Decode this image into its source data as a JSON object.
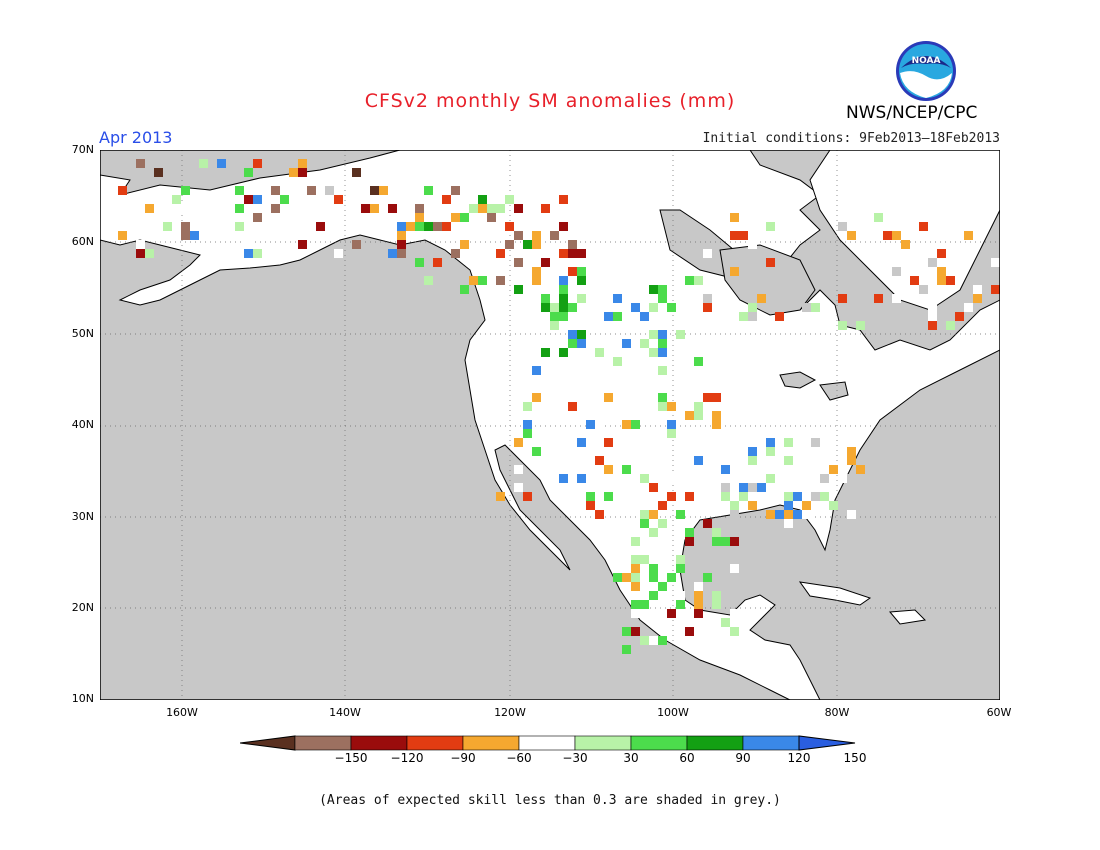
{
  "title": "CFSv2 monthly SM anomalies (mm)",
  "period": "Apr 2013",
  "initial_conditions": "Initial conditions: 9Feb2013–18Feb2013",
  "agency": "NWS/NCEP/CPC",
  "logo_text": "NOAA",
  "footnote": "(Areas of expected skill less than 0.3 are shaded in grey.)",
  "axes": {
    "lat_labels": [
      "70N",
      "60N",
      "50N",
      "40N",
      "30N",
      "20N",
      "10N"
    ],
    "lon_labels": [
      "160W",
      "140W",
      "120W",
      "100W",
      "80W",
      "60W"
    ]
  },
  "colorbar": {
    "labels": [
      "−150",
      "−120",
      "−90",
      "−60",
      "−30",
      "30",
      "60",
      "90",
      "120",
      "150"
    ],
    "colors": [
      "#5a3020",
      "#9c7060",
      "#9a0c0c",
      "#e23c12",
      "#f5a830",
      "#ffffff",
      "#b8f2a8",
      "#4cdc4c",
      "#13a013",
      "#3a88e8",
      "#2a5ee0"
    ]
  },
  "colors": {
    "ocean": "#c8c8c8",
    "land": "#ffffff",
    "skill_grey": "#c8c8c8"
  }
}
